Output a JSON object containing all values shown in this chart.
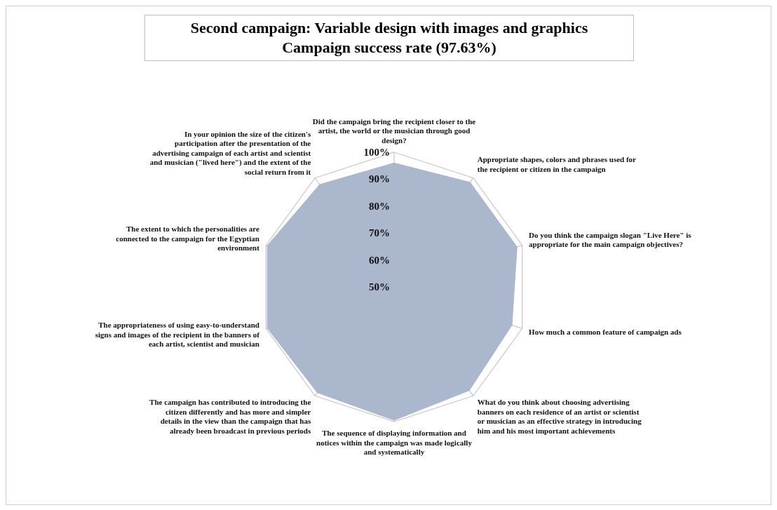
{
  "chart_data": {
    "type": "radar",
    "title": "Second campaign: Variable design with images and graphics",
    "subtitle": "Campaign success rate (97.63%)",
    "categories": [
      "Did the campaign bring the recipient closer to the artist, the world or the musician through good design?",
      "Appropriate shapes, colors and phrases used for the recipient or citizen in the campaign",
      "Do you think the campaign slogan \"Live Here\" is appropriate for the main campaign objectives?",
      "How much a common feature of campaign ads",
      "What do you think about choosing advertising banners on each residence of an artist or scientist or musician as an effective strategy in introducing him and his most important achievements",
      "The sequence of displaying information and notices within the campaign was made logically and systematically",
      "The campaign has contributed to introducing the citizen differently and has more and simpler details in the view than the campaign that has already been broadcast in previous periods",
      "The appropriateness of using easy-to-understand signs and images of the recipient in the banners of each artist, scientist and musician",
      "The extent to which the personalities are connected to the campaign for the Egyptian environment",
      "In your opinion the size of the citizen's participation after the presentation of the advertising campaign of each artist and scientist and musician (\"lived here\") and the extent of the social return from it"
    ],
    "series": [
      {
        "color": "#abb7cc",
        "values": [
          96,
          98,
          98,
          96,
          97.5,
          99.5,
          98.5,
          99.5,
          99.5,
          97
        ]
      }
    ],
    "ylim": [
      50,
      100
    ],
    "yticks": [
      {
        "value": 50,
        "label": "50%"
      },
      {
        "value": 60,
        "label": "60%"
      },
      {
        "value": 70,
        "label": "70%"
      },
      {
        "value": 80,
        "label": "80%"
      },
      {
        "value": 90,
        "label": "90%"
      },
      {
        "value": 100,
        "label": "100%"
      }
    ],
    "grid": true
  }
}
